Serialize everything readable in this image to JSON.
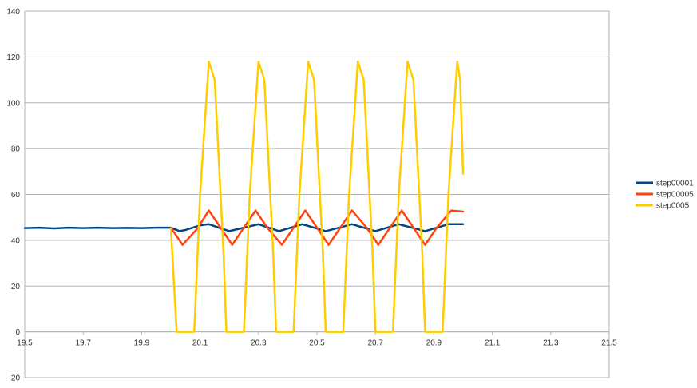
{
  "chart_data": {
    "type": "line",
    "title": "",
    "xlabel": "",
    "ylabel": "",
    "xlim": [
      19.5,
      21.5
    ],
    "ylim": [
      -20,
      140
    ],
    "x_ticks": [
      "19.5",
      "19.7",
      "19.9",
      "20.1",
      "20.3",
      "20.5",
      "20.7",
      "20.9",
      "21.1",
      "21.3",
      "21.5"
    ],
    "y_ticks": [
      "-20",
      "0",
      "20",
      "40",
      "60",
      "80",
      "100",
      "120",
      "140"
    ],
    "grid": "horizontal",
    "legend_position": "right",
    "series": [
      {
        "name": "step00001",
        "color": "#004586",
        "points": [
          [
            19.5,
            45.3
          ],
          [
            19.55,
            45.5
          ],
          [
            19.6,
            45.2
          ],
          [
            19.65,
            45.5
          ],
          [
            19.7,
            45.3
          ],
          [
            19.75,
            45.5
          ],
          [
            19.8,
            45.3
          ],
          [
            19.85,
            45.4
          ],
          [
            19.9,
            45.3
          ],
          [
            19.95,
            45.5
          ],
          [
            20.0,
            45.5
          ],
          [
            20.03,
            44.0
          ],
          [
            20.05,
            44.5
          ],
          [
            20.1,
            46.5
          ],
          [
            20.13,
            47.0
          ],
          [
            20.2,
            44.0
          ],
          [
            20.25,
            45.5
          ],
          [
            20.3,
            47.0
          ],
          [
            20.37,
            44.0
          ],
          [
            20.45,
            47.0
          ],
          [
            20.53,
            44.0
          ],
          [
            20.62,
            47.0
          ],
          [
            20.7,
            44.0
          ],
          [
            20.78,
            47.0
          ],
          [
            20.87,
            44.0
          ],
          [
            20.95,
            47.0
          ],
          [
            21.0,
            47.0
          ]
        ]
      },
      {
        "name": "step00005",
        "color": "#ff420e",
        "points": [
          [
            20.0,
            45.5
          ],
          [
            20.04,
            38.0
          ],
          [
            20.09,
            45.0
          ],
          [
            20.13,
            53.0
          ],
          [
            20.17,
            45.5
          ],
          [
            20.21,
            38.0
          ],
          [
            20.25,
            45.5
          ],
          [
            20.29,
            53.0
          ],
          [
            20.33,
            45.5
          ],
          [
            20.38,
            38.0
          ],
          [
            20.42,
            45.5
          ],
          [
            20.46,
            53.0
          ],
          [
            20.5,
            45.5
          ],
          [
            20.54,
            38.0
          ],
          [
            20.58,
            45.5
          ],
          [
            20.62,
            53.0
          ],
          [
            20.67,
            45.5
          ],
          [
            20.71,
            38.0
          ],
          [
            20.75,
            45.5
          ],
          [
            20.79,
            53.0
          ],
          [
            20.83,
            45.5
          ],
          [
            20.87,
            38.0
          ],
          [
            20.91,
            45.5
          ],
          [
            20.96,
            53.0
          ],
          [
            21.0,
            52.5
          ]
        ]
      },
      {
        "name": "step0005",
        "color": "#ffcc00",
        "points": [
          [
            20.0,
            45.0
          ],
          [
            20.02,
            0
          ],
          [
            20.08,
            0
          ],
          [
            20.1,
            60.0
          ],
          [
            20.13,
            118.0
          ],
          [
            20.15,
            110.0
          ],
          [
            20.18,
            35.0
          ],
          [
            20.19,
            0
          ],
          [
            20.25,
            0
          ],
          [
            20.27,
            60.0
          ],
          [
            20.3,
            118.0
          ],
          [
            20.32,
            110.0
          ],
          [
            20.35,
            35.0
          ],
          [
            20.36,
            0
          ],
          [
            20.42,
            0
          ],
          [
            20.44,
            60.0
          ],
          [
            20.47,
            118.0
          ],
          [
            20.49,
            110.0
          ],
          [
            20.52,
            35.0
          ],
          [
            20.53,
            0
          ],
          [
            20.59,
            0
          ],
          [
            20.61,
            60.0
          ],
          [
            20.64,
            118.0
          ],
          [
            20.66,
            110.0
          ],
          [
            20.69,
            35.0
          ],
          [
            20.7,
            0
          ],
          [
            20.76,
            0
          ],
          [
            20.78,
            60.0
          ],
          [
            20.81,
            118.0
          ],
          [
            20.83,
            110.0
          ],
          [
            20.86,
            35.0
          ],
          [
            20.87,
            0
          ],
          [
            20.93,
            0
          ],
          [
            20.95,
            60.0
          ],
          [
            20.98,
            118.0
          ],
          [
            20.99,
            110.0
          ],
          [
            21.0,
            69.0
          ]
        ]
      }
    ]
  }
}
